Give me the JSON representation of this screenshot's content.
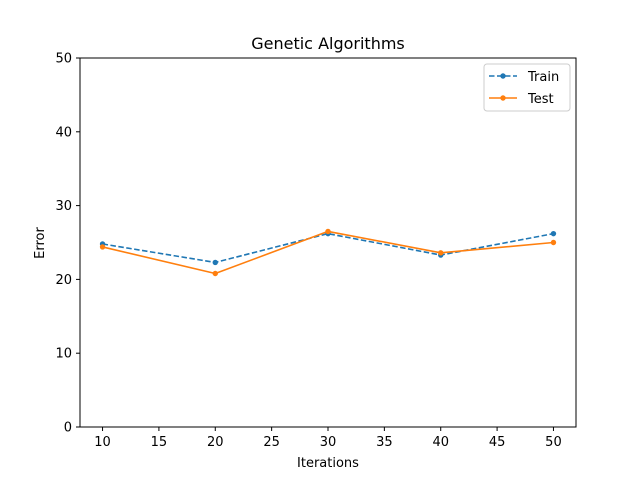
{
  "chart_data": {
    "type": "line",
    "title": "Genetic Algorithms",
    "xlabel": "Iterations",
    "ylabel": "Error",
    "xlim": [
      8,
      52
    ],
    "ylim": [
      0,
      50
    ],
    "xticks": [
      10,
      15,
      20,
      25,
      30,
      35,
      40,
      45,
      50
    ],
    "yticks": [
      0,
      10,
      20,
      30,
      40,
      50
    ],
    "x": [
      10,
      20,
      30,
      40,
      50
    ],
    "series": [
      {
        "name": "Train",
        "values": [
          24.8,
          22.3,
          26.2,
          23.3,
          26.2
        ],
        "color": "#1f77b4",
        "line_style": "dashed",
        "marker": "circle"
      },
      {
        "name": "Test",
        "values": [
          24.4,
          20.8,
          26.5,
          23.6,
          25.0
        ],
        "color": "#ff7f0e",
        "line_style": "solid",
        "marker": "circle"
      }
    ],
    "grid": false,
    "legend_position": "top-right"
  }
}
